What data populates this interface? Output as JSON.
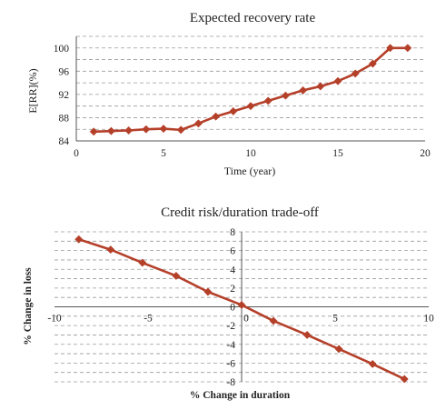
{
  "colors": {
    "series": "#b5402a",
    "grid": "#9a9a9a",
    "axis": "#555555"
  },
  "chart_data": [
    {
      "type": "line",
      "title": "Expected recovery rate",
      "xlabel": "Time (year)",
      "ylabel": "E[RR](%)",
      "xlim": [
        0,
        20
      ],
      "ylim": [
        84,
        102
      ],
      "xticks": [
        0,
        5,
        10,
        15,
        20
      ],
      "yticks": [
        84,
        88,
        92,
        96,
        100
      ],
      "grid": "horizontal dashed",
      "series": [
        {
          "x": [
            1,
            2,
            3,
            4,
            5,
            6,
            7,
            8,
            9,
            10,
            11,
            12,
            13,
            14,
            15,
            16,
            17,
            18,
            19
          ],
          "y": [
            85.6,
            85.7,
            85.8,
            86.0,
            86.1,
            85.9,
            87.0,
            88.2,
            89.1,
            90.0,
            90.9,
            91.8,
            92.7,
            93.4,
            94.3,
            95.6,
            97.3,
            100.0,
            100.0
          ]
        }
      ]
    },
    {
      "type": "line",
      "title": "Credit risk/duration trade-off",
      "xlabel": "% Change in duration",
      "ylabel": "% Change in loss",
      "xlim": [
        -10,
        10
      ],
      "ylim": [
        -8,
        8
      ],
      "xticks": [
        -10,
        -5,
        0,
        5,
        10
      ],
      "yticks": [
        8,
        6,
        4,
        2,
        0,
        -2,
        -4,
        -6,
        -8
      ],
      "grid": "horizontal dashed",
      "series": [
        {
          "x": [
            -8.7,
            -7.0,
            -5.3,
            -3.5,
            -1.8,
            0.0,
            1.7,
            3.5,
            5.2,
            7.0,
            8.7
          ],
          "y": [
            7.2,
            6.1,
            4.7,
            3.3,
            1.6,
            0.2,
            -1.5,
            -3.0,
            -4.5,
            -6.1,
            -7.7
          ]
        }
      ]
    }
  ]
}
